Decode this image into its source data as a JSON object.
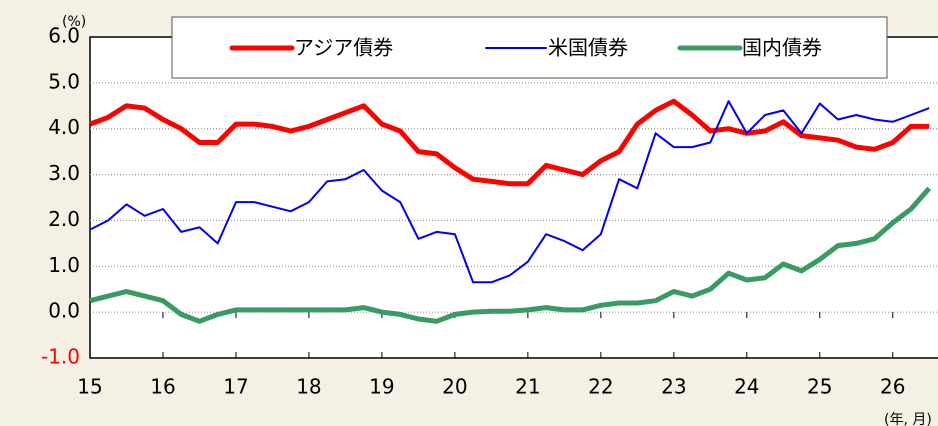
{
  "chart_data": {
    "type": "line",
    "y_unit": "(%)",
    "x_label": "(年, 月)",
    "x": [
      15,
      15.25,
      15.5,
      15.75,
      16,
      16.25,
      16.5,
      16.75,
      17,
      17.25,
      17.5,
      17.75,
      18,
      18.25,
      18.5,
      18.75,
      19,
      19.25,
      19.5,
      19.75,
      20,
      20.25,
      20.5,
      20.75,
      21,
      21.25,
      21.5,
      21.75,
      22,
      22.25,
      22.5,
      22.75,
      23,
      23.25,
      23.5,
      23.75,
      24,
      24.25,
      24.5,
      24.75,
      25,
      25.25,
      25.5,
      25.75,
      26,
      26.25,
      26.5
    ],
    "series": [
      {
        "name": "アジア債券",
        "color": "#ff0000",
        "width": 5,
        "values": [
          4.1,
          4.25,
          4.5,
          4.45,
          4.2,
          4.0,
          3.7,
          3.7,
          4.1,
          4.1,
          4.05,
          3.95,
          4.05,
          4.2,
          4.35,
          4.5,
          4.1,
          3.95,
          3.5,
          3.45,
          3.15,
          2.9,
          2.85,
          2.8,
          2.8,
          3.2,
          3.1,
          3.0,
          3.3,
          3.5,
          4.1,
          4.4,
          4.6,
          4.3,
          3.95,
          4.0,
          3.9,
          3.95,
          4.15,
          3.85,
          3.8,
          3.75,
          3.6,
          3.55,
          3.7,
          4.05,
          4.05
        ]
      },
      {
        "name": "米国債券",
        "color": "#0000ee",
        "width": 2,
        "values": [
          1.8,
          2.0,
          2.35,
          2.1,
          2.25,
          1.75,
          1.85,
          1.5,
          2.4,
          2.4,
          2.3,
          2.2,
          2.4,
          2.85,
          2.9,
          3.1,
          2.65,
          2.4,
          1.6,
          1.75,
          1.7,
          0.65,
          0.65,
          0.8,
          1.1,
          1.7,
          1.55,
          1.35,
          1.7,
          2.9,
          2.7,
          3.9,
          3.6,
          3.6,
          3.7,
          4.6,
          3.9,
          4.3,
          4.4,
          3.9,
          4.55,
          4.2,
          4.3,
          4.2,
          4.15,
          4.3,
          4.45
        ]
      },
      {
        "name": "国内債券",
        "color": "#3a9a64",
        "width": 5,
        "values": [
          0.25,
          0.35,
          0.45,
          0.35,
          0.25,
          -0.05,
          -0.2,
          -0.05,
          0.05,
          0.05,
          0.05,
          0.05,
          0.05,
          0.05,
          0.05,
          0.1,
          0.0,
          -0.05,
          -0.15,
          -0.2,
          -0.05,
          0.0,
          0.02,
          0.02,
          0.05,
          0.1,
          0.05,
          0.05,
          0.15,
          0.2,
          0.2,
          0.25,
          0.45,
          0.35,
          0.5,
          0.85,
          0.7,
          0.75,
          1.05,
          0.9,
          1.15,
          1.45,
          1.5,
          1.6,
          1.95,
          2.25,
          2.7
        ]
      }
    ],
    "xlim": [
      15,
      26.62
    ],
    "xticks": [
      15,
      16,
      17,
      18,
      19,
      20,
      21,
      22,
      23,
      24,
      25,
      26
    ],
    "ylim": [
      -1,
      6
    ],
    "yticks": [
      {
        "value": -1,
        "label": "-1.0"
      },
      {
        "value": 0,
        "label": "0.0"
      },
      {
        "value": 1,
        "label": "1.0"
      },
      {
        "value": 2,
        "label": "2.0"
      },
      {
        "value": 3,
        "label": "3.0"
      },
      {
        "value": 4,
        "label": "4.0"
      },
      {
        "value": 5,
        "label": "5.0"
      },
      {
        "value": 6,
        "label": "6.0"
      }
    ],
    "negative_tick_color": "#ff0000",
    "grid": true,
    "legend": "top"
  }
}
